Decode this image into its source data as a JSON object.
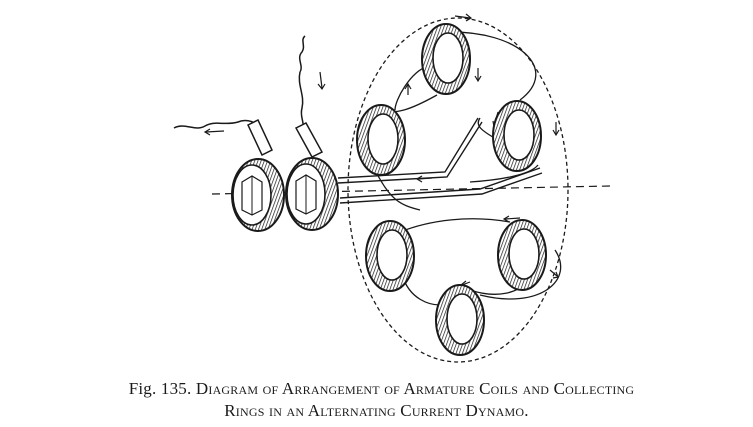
{
  "figure": {
    "caption_number": "Fig. 135.",
    "caption_line1_rest": "Diagram of Arrangement of Armature Coils and Collecting",
    "caption_line2": "Rings in an Alternating Current Dynamo."
  },
  "diagram": {
    "coil_count": 6,
    "ring_count": 2
  }
}
